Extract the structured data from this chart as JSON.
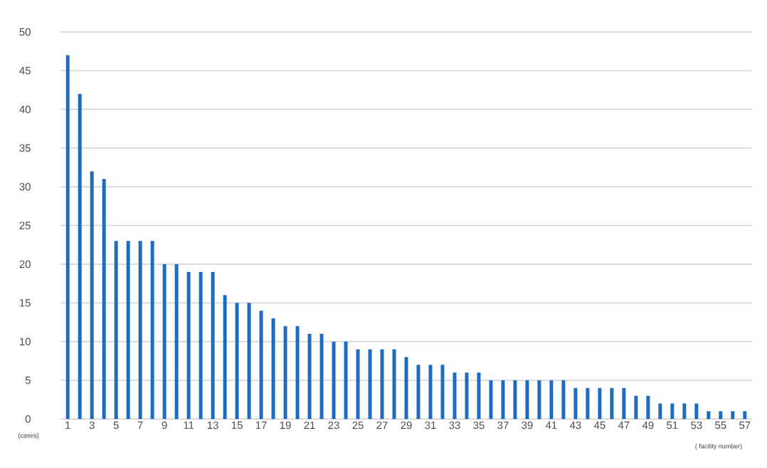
{
  "chart_data": {
    "type": "bar",
    "categories": [
      "1",
      null,
      "3",
      null,
      "5",
      null,
      "7",
      null,
      "9",
      null,
      "11",
      null,
      "13",
      null,
      "15",
      null,
      "17",
      null,
      "19",
      null,
      "21",
      null,
      "23",
      null,
      "25",
      null,
      "27",
      null,
      "29",
      null,
      "31",
      null,
      "33",
      null,
      "35",
      null,
      "37",
      null,
      "39",
      null,
      "41",
      null,
      "43",
      null,
      "45",
      null,
      "47",
      null,
      "49",
      null,
      "51",
      null,
      "53",
      null,
      "55",
      null,
      "57"
    ],
    "values": [
      47,
      42,
      32,
      31,
      23,
      23,
      23,
      23,
      20,
      20,
      19,
      19,
      19,
      16,
      15,
      15,
      14,
      13,
      12,
      12,
      11,
      11,
      10,
      10,
      9,
      9,
      9,
      9,
      8,
      7,
      7,
      7,
      6,
      6,
      6,
      5,
      5,
      5,
      5,
      5,
      5,
      5,
      4,
      4,
      4,
      4,
      4,
      3,
      3,
      2,
      2,
      2,
      2,
      1,
      1,
      1,
      1
    ],
    "color": "#1f6bc0",
    "ylim": [
      0,
      50
    ],
    "yticks": [
      0,
      5,
      10,
      15,
      20,
      25,
      30,
      35,
      40,
      45,
      50
    ],
    "grid": "y",
    "annotations": [
      "(cases)",
      "( facility number)"
    ]
  }
}
